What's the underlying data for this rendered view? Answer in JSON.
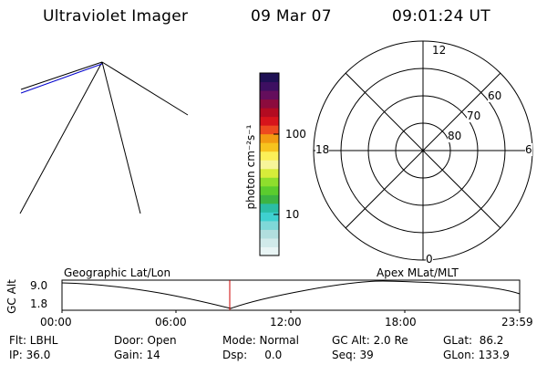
{
  "header": {
    "instrument": "Ultraviolet Imager",
    "date": "09 Mar 07",
    "time": "09:01:24 UT"
  },
  "colorbar": {
    "units_label": "photon cm⁻²s⁻¹",
    "tick_100": "100",
    "tick_10": "10",
    "colors": [
      "#e9f5f5",
      "#d1eaea",
      "#b1dede",
      "#7fd8d8",
      "#3fd0d0",
      "#2bbda5",
      "#3cb443",
      "#5bcc2e",
      "#8ede2d",
      "#d7ec3a",
      "#f7f59a",
      "#fbf058",
      "#f7c31e",
      "#f29a12",
      "#ed4a1f",
      "#d7141b",
      "#b30b21",
      "#8c0b3d",
      "#640e5c",
      "#3d0f61",
      "#1e1053"
    ]
  },
  "polar": {
    "mlt_12": "12",
    "mlt_18": "18",
    "mlt_6": "6",
    "mlt_0": "0",
    "lat_60": "60",
    "lat_70": "70",
    "lat_80": "80"
  },
  "track_plot": {
    "left_title": "Geographic Lat/Lon",
    "right_title": "Apex MLat/MLT",
    "y_label": "GC Alt",
    "y_top": "9.0",
    "y_bottom": "1.8",
    "x_ticks": [
      "00:00",
      "06:00",
      "12:00",
      "18:00",
      "23:59"
    ]
  },
  "status": {
    "flt": "Flt: LBHL",
    "ip": "IP: 36.0",
    "door": "Door: Open",
    "gain": "Gain: 14",
    "mode": "Mode: Normal",
    "dsp": "Dsp:     0.0",
    "gcalt": "GC Alt: 2.0 Re",
    "seq": "Seq: 39",
    "glat": "GLat:  86.2",
    "glon": "GLon: 133.9"
  },
  "colors": {
    "orbit_line": "#0000cc",
    "time_marker": "#cc0000"
  }
}
